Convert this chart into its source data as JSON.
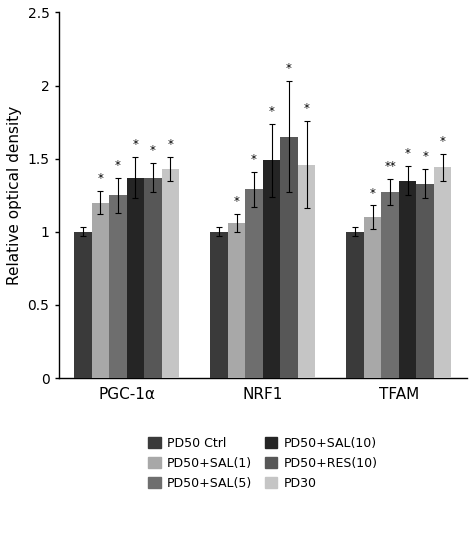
{
  "groups": [
    "PGC-1α",
    "NRF1",
    "TFAM"
  ],
  "series": [
    {
      "label": "PD50 Ctrl",
      "color": "#3a3a3a",
      "values": [
        1.0,
        1.0,
        1.0
      ],
      "errors": [
        0.03,
        0.03,
        0.03
      ],
      "stars": [
        "",
        "",
        ""
      ]
    },
    {
      "label": "PD50+SAL(1)",
      "color": "#a8a8a8",
      "values": [
        1.2,
        1.06,
        1.1
      ],
      "errors": [
        0.08,
        0.06,
        0.08
      ],
      "stars": [
        "*",
        "*",
        "*"
      ]
    },
    {
      "label": "PD50+SAL(5)",
      "color": "#6e6e6e",
      "values": [
        1.25,
        1.29,
        1.27
      ],
      "errors": [
        0.12,
        0.12,
        0.09
      ],
      "stars": [
        "*",
        "*",
        "**"
      ]
    },
    {
      "label": "PD50+SAL(10)",
      "color": "#252525",
      "values": [
        1.37,
        1.49,
        1.35
      ],
      "errors": [
        0.14,
        0.25,
        0.1
      ],
      "stars": [
        "*",
        "*",
        "*"
      ]
    },
    {
      "label": "PD50+RES(10)",
      "color": "#575757",
      "values": [
        1.37,
        1.65,
        1.33
      ],
      "errors": [
        0.1,
        0.38,
        0.1
      ],
      "stars": [
        "*",
        "*",
        "*"
      ]
    },
    {
      "label": "PD30",
      "color": "#c5c5c5",
      "values": [
        1.43,
        1.46,
        1.44
      ],
      "errors": [
        0.08,
        0.3,
        0.09
      ],
      "stars": [
        "*",
        "*",
        "*"
      ]
    }
  ],
  "ylabel": "Relative optical density",
  "ylim": [
    0,
    2.5
  ],
  "yticks": [
    0,
    0.5,
    1.0,
    1.5,
    2.0,
    2.5
  ],
  "ytick_labels": [
    "0",
    "0.5",
    "1",
    "1.5",
    "2",
    "2.5"
  ],
  "bar_width": 0.09,
  "group_centers": [
    0.35,
    1.05,
    1.75
  ],
  "figsize": [
    4.74,
    5.4
  ],
  "dpi": 100
}
